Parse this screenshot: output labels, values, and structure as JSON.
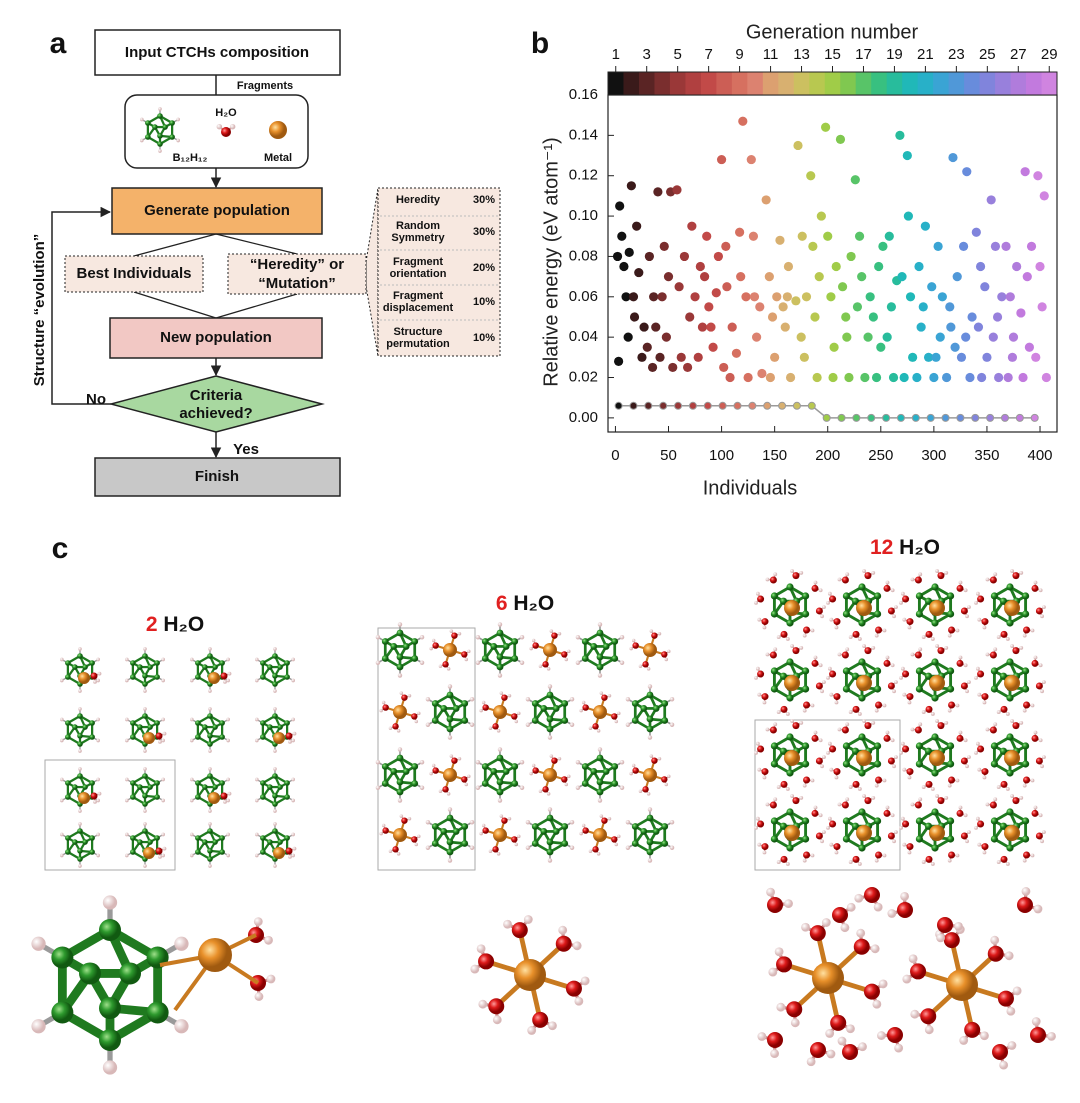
{
  "panel_a": {
    "label": "a",
    "input": "Input CTCHs composition",
    "fragments_label": "Fragments",
    "fragments": {
      "cluster": "B₁₂H₁₂",
      "water": "H₂O",
      "metal": "Metal"
    },
    "generate": "Generate population",
    "best": "Best Individuals",
    "operators": [
      "“Heredity” or",
      "“Mutation”"
    ],
    "new": "New population",
    "criteria": [
      "Criteria",
      "achieved?"
    ],
    "no": "No",
    "yes": "Yes",
    "finish": "Finish",
    "loop": "Structure “evolution”",
    "table": [
      {
        "name": [
          "Heredity"
        ],
        "share": "30%"
      },
      {
        "name": [
          "Random",
          "Symmetry"
        ],
        "share": "30%"
      },
      {
        "name": [
          "Fragment",
          "orientation"
        ],
        "share": "20%"
      },
      {
        "name": [
          "Fragment",
          "displacement"
        ],
        "share": "10%"
      },
      {
        "name": [
          "Structure",
          "permutation"
        ],
        "share": "10%"
      }
    ]
  },
  "chart_data": {
    "type": "scatter",
    "label": "b",
    "x_label": "Individuals",
    "y_label": "Relative energy (eV atom⁻¹)",
    "xlim": [
      -7,
      416
    ],
    "xticks": [
      0,
      50,
      100,
      150,
      200,
      250,
      300,
      350,
      400
    ],
    "ylim": [
      -0.007,
      0.16
    ],
    "yticks": [
      {
        "value": 0,
        "label": "0.00"
      },
      {
        "value": 0.02,
        "label": "0.02"
      },
      {
        "value": 0.04,
        "label": "0.04"
      },
      {
        "value": 0.06,
        "label": "0.06"
      },
      {
        "value": 0.08,
        "label": "0.08"
      },
      {
        "value": 0.1,
        "label": "0.10"
      },
      {
        "value": 0.12,
        "label": "0.12"
      },
      {
        "value": 0.14,
        "label": "0.14"
      },
      {
        "value": 0.16,
        "label": "0.16"
      }
    ],
    "grid": false,
    "colorbar": {
      "label": "Generation number",
      "lim": [
        0.5,
        29.5
      ],
      "ticks": [
        1,
        3,
        5,
        7,
        9,
        11,
        13,
        15,
        17,
        19,
        21,
        23,
        25,
        27,
        29
      ]
    },
    "series": [
      {
        "color": "#111111",
        "x": [
          2,
          4,
          6,
          8,
          10,
          12,
          3,
          13
        ],
        "values": [
          0.08,
          0.105,
          0.09,
          0.075,
          0.06,
          0.04,
          0.028,
          0.082
        ]
      },
      {
        "color": "#3a1a1a",
        "x": [
          15,
          17,
          20,
          22,
          25,
          27,
          18
        ],
        "values": [
          0.115,
          0.06,
          0.095,
          0.072,
          0.03,
          0.045,
          0.05
        ]
      },
      {
        "color": "#5a2424",
        "x": [
          30,
          32,
          35,
          38,
          40,
          42,
          36
        ],
        "values": [
          0.035,
          0.08,
          0.025,
          0.045,
          0.112,
          0.03,
          0.06
        ]
      },
      {
        "color": "#7a2e2e",
        "x": [
          44,
          46,
          48,
          52,
          54,
          50
        ],
        "values": [
          0.06,
          0.085,
          0.04,
          0.112,
          0.025,
          0.07
        ]
      },
      {
        "color": "#9a3838",
        "x": [
          58,
          60,
          62,
          65,
          68,
          70
        ],
        "values": [
          0.113,
          0.065,
          0.03,
          0.08,
          0.025,
          0.05
        ]
      },
      {
        "color": "#b04040",
        "x": [
          72,
          75,
          78,
          80,
          82,
          84
        ],
        "values": [
          0.095,
          0.06,
          0.03,
          0.075,
          0.045,
          0.07
        ]
      },
      {
        "color": "#c24a48",
        "x": [
          86,
          88,
          92,
          95,
          97,
          90
        ],
        "values": [
          0.09,
          0.055,
          0.035,
          0.062,
          0.08,
          0.045
        ]
      },
      {
        "color": "#cc5e55",
        "x": [
          100,
          102,
          105,
          108,
          110,
          104
        ],
        "values": [
          0.128,
          0.025,
          0.065,
          0.02,
          0.045,
          0.085
        ]
      },
      {
        "color": "#d67060",
        "x": [
          114,
          117,
          120,
          123,
          125,
          118
        ],
        "values": [
          0.032,
          0.092,
          0.147,
          0.06,
          0.02,
          0.07
        ]
      },
      {
        "color": "#dc8270",
        "x": [
          128,
          130,
          133,
          136,
          138,
          131
        ],
        "values": [
          0.128,
          0.09,
          0.04,
          0.055,
          0.022,
          0.06
        ]
      },
      {
        "color": "#dca070",
        "x": [
          142,
          145,
          148,
          150,
          152,
          146
        ],
        "values": [
          0.108,
          0.07,
          0.05,
          0.03,
          0.06,
          0.02
        ]
      },
      {
        "color": "#d8b070",
        "x": [
          155,
          158,
          160,
          163,
          165,
          162
        ],
        "values": [
          0.088,
          0.055,
          0.045,
          0.075,
          0.02,
          0.06
        ]
      },
      {
        "color": "#ccc060",
        "x": [
          170,
          172,
          175,
          178,
          180,
          176
        ],
        "values": [
          0.058,
          0.135,
          0.04,
          0.03,
          0.06,
          0.09
        ]
      },
      {
        "color": "#b8c850",
        "x": [
          184,
          186,
          188,
          190,
          192,
          194
        ],
        "values": [
          0.12,
          0.085,
          0.05,
          0.02,
          0.07,
          0.1
        ]
      },
      {
        "color": "#a0cc48",
        "x": [
          198,
          200,
          203,
          206,
          208,
          205
        ],
        "values": [
          0.144,
          0.09,
          0.06,
          0.035,
          0.075,
          0.02
        ]
      },
      {
        "color": "#80c850",
        "x": [
          212,
          214,
          217,
          220,
          222,
          218
        ],
        "values": [
          0.138,
          0.065,
          0.05,
          0.02,
          0.08,
          0.04
        ]
      },
      {
        "color": "#58c468",
        "x": [
          226,
          228,
          232,
          235,
          238,
          230
        ],
        "values": [
          0.118,
          0.055,
          0.07,
          0.02,
          0.04,
          0.09
        ]
      },
      {
        "color": "#38c080",
        "x": [
          240,
          243,
          246,
          248,
          250,
          252
        ],
        "values": [
          0.06,
          0.05,
          0.02,
          0.075,
          0.035,
          0.085
        ]
      },
      {
        "color": "#28bc9c",
        "x": [
          256,
          258,
          262,
          265,
          268,
          260
        ],
        "values": [
          0.04,
          0.09,
          0.02,
          0.068,
          0.14,
          0.055
        ]
      },
      {
        "color": "#20b8b8",
        "x": [
          270,
          272,
          275,
          278,
          280,
          276
        ],
        "values": [
          0.07,
          0.02,
          0.13,
          0.06,
          0.03,
          0.1
        ]
      },
      {
        "color": "#28b0c8",
        "x": [
          284,
          286,
          290,
          292,
          295,
          288
        ],
        "values": [
          0.02,
          0.075,
          0.055,
          0.095,
          0.03,
          0.045
        ]
      },
      {
        "color": "#3aa4d4",
        "x": [
          298,
          300,
          304,
          306,
          308,
          302
        ],
        "values": [
          0.065,
          0.02,
          0.085,
          0.04,
          0.06,
          0.03
        ]
      },
      {
        "color": "#5098d8",
        "x": [
          312,
          315,
          318,
          320,
          322,
          316
        ],
        "values": [
          0.02,
          0.055,
          0.129,
          0.035,
          0.07,
          0.045
        ]
      },
      {
        "color": "#688cdc",
        "x": [
          326,
          328,
          331,
          334,
          336,
          330
        ],
        "values": [
          0.03,
          0.085,
          0.122,
          0.02,
          0.05,
          0.04
        ]
      },
      {
        "color": "#8084dc",
        "x": [
          340,
          342,
          345,
          348,
          350,
          344
        ],
        "values": [
          0.092,
          0.045,
          0.02,
          0.065,
          0.03,
          0.075
        ]
      },
      {
        "color": "#9880dc",
        "x": [
          354,
          356,
          358,
          361,
          364,
          360
        ],
        "values": [
          0.108,
          0.04,
          0.085,
          0.02,
          0.06,
          0.05
        ]
      },
      {
        "color": "#b07cdc",
        "x": [
          368,
          370,
          372,
          375,
          378,
          374
        ],
        "values": [
          0.085,
          0.02,
          0.06,
          0.04,
          0.075,
          0.03
        ]
      },
      {
        "color": "#c27ade",
        "x": [
          382,
          384,
          386,
          388,
          390,
          392
        ],
        "values": [
          0.052,
          0.02,
          0.122,
          0.07,
          0.035,
          0.085
        ]
      },
      {
        "color": "#d084e0",
        "x": [
          396,
          398,
          400,
          402,
          404,
          406
        ],
        "values": [
          0.03,
          0.12,
          0.075,
          0.055,
          0.11,
          0.02
        ]
      }
    ],
    "best": {
      "color": "#9a9a9a",
      "x": [
        3,
        17,
        31,
        45,
        59,
        73,
        87,
        101,
        115,
        129,
        143,
        157,
        171,
        185,
        199,
        213,
        227,
        241,
        255,
        269,
        283,
        297,
        311,
        325,
        339,
        353,
        367,
        381,
        395
      ],
      "values": [
        0.006,
        0.006,
        0.006,
        0.006,
        0.006,
        0.006,
        0.006,
        0.006,
        0.006,
        0.006,
        0.006,
        0.006,
        0.006,
        0.006,
        0,
        0,
        0,
        0,
        0,
        0,
        0,
        0,
        0,
        0,
        0,
        0,
        0,
        0,
        0
      ]
    }
  },
  "panel_c": {
    "label": "c",
    "structures": [
      {
        "count": 2,
        "formula": "H₂O"
      },
      {
        "count": 6,
        "formula": "H₂O"
      },
      {
        "count": 12,
        "formula": "H₂O"
      }
    ]
  }
}
